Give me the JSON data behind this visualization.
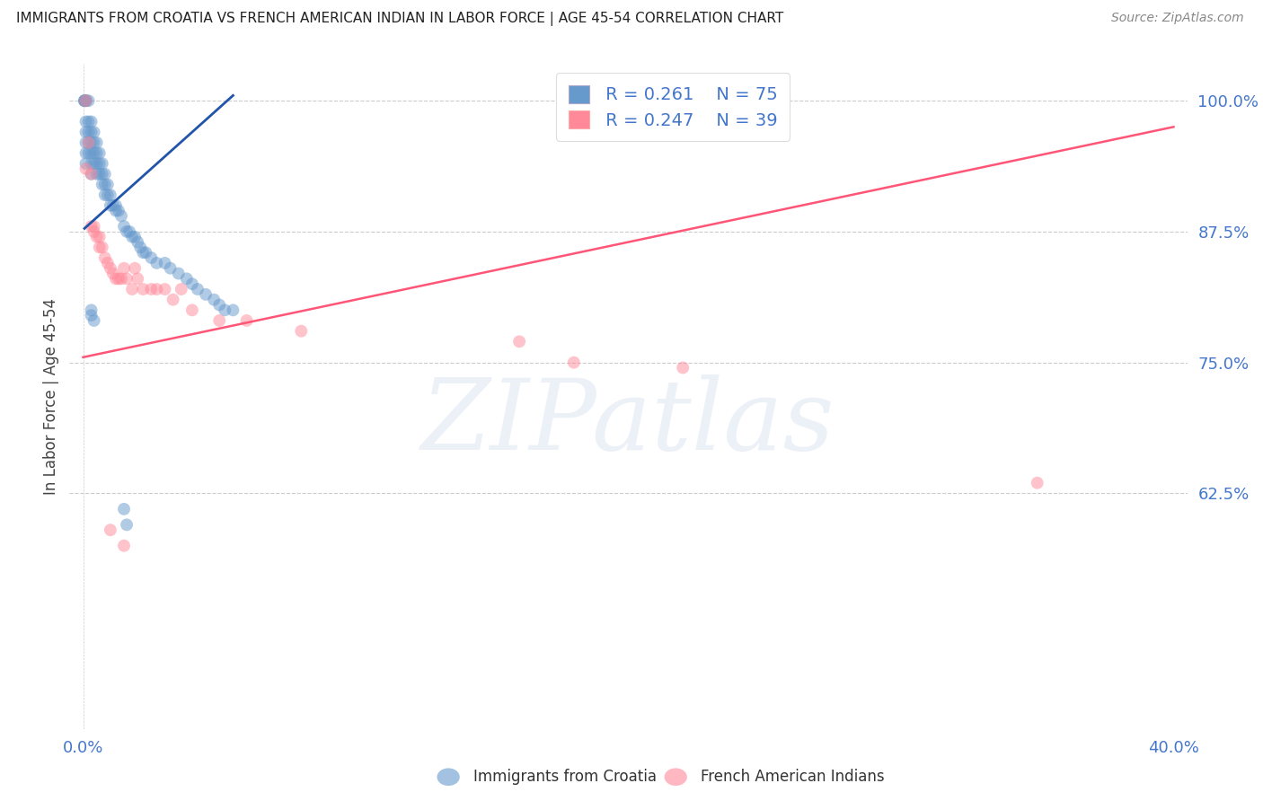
{
  "title": "IMMIGRANTS FROM CROATIA VS FRENCH AMERICAN INDIAN IN LABOR FORCE | AGE 45-54 CORRELATION CHART",
  "source": "Source: ZipAtlas.com",
  "ylabel": "In Labor Force | Age 45-54",
  "watermark": "ZIPatlas",
  "legend_blue_r": "0.261",
  "legend_blue_n": "75",
  "legend_pink_r": "0.247",
  "legend_pink_n": "39",
  "legend_label_blue": "Immigrants from Croatia",
  "legend_label_pink": "French American Indians",
  "blue_color": "#6699CC",
  "pink_color": "#FF8899",
  "trendline_blue_color": "#2255AA",
  "trendline_pink_color": "#FF5577",
  "blue_x": [
    0.0005,
    0.0005,
    0.0005,
    0.001,
    0.001,
    0.001,
    0.001,
    0.001,
    0.001,
    0.001,
    0.001,
    0.002,
    0.002,
    0.002,
    0.002,
    0.002,
    0.003,
    0.003,
    0.003,
    0.003,
    0.003,
    0.003,
    0.004,
    0.004,
    0.004,
    0.004,
    0.005,
    0.005,
    0.005,
    0.005,
    0.006,
    0.006,
    0.006,
    0.007,
    0.007,
    0.007,
    0.008,
    0.008,
    0.008,
    0.009,
    0.009,
    0.01,
    0.01,
    0.011,
    0.012,
    0.012,
    0.013,
    0.014,
    0.015,
    0.016,
    0.017,
    0.018,
    0.019,
    0.02,
    0.021,
    0.022,
    0.023,
    0.025,
    0.027,
    0.03,
    0.032,
    0.035,
    0.038,
    0.04,
    0.042,
    0.045,
    0.048,
    0.05,
    0.052,
    0.055,
    0.003,
    0.003,
    0.004,
    0.015,
    0.016
  ],
  "blue_y": [
    1.0,
    1.0,
    1.0,
    1.0,
    1.0,
    1.0,
    0.98,
    0.97,
    0.96,
    0.95,
    0.94,
    1.0,
    0.98,
    0.97,
    0.96,
    0.95,
    0.98,
    0.97,
    0.96,
    0.95,
    0.94,
    0.93,
    0.97,
    0.96,
    0.95,
    0.94,
    0.96,
    0.95,
    0.94,
    0.93,
    0.95,
    0.94,
    0.93,
    0.94,
    0.93,
    0.92,
    0.93,
    0.92,
    0.91,
    0.92,
    0.91,
    0.91,
    0.9,
    0.9,
    0.9,
    0.895,
    0.895,
    0.89,
    0.88,
    0.875,
    0.875,
    0.87,
    0.87,
    0.865,
    0.86,
    0.855,
    0.855,
    0.85,
    0.845,
    0.845,
    0.84,
    0.835,
    0.83,
    0.825,
    0.82,
    0.815,
    0.81,
    0.805,
    0.8,
    0.8,
    0.8,
    0.795,
    0.79,
    0.61,
    0.595
  ],
  "pink_x": [
    0.001,
    0.001,
    0.002,
    0.003,
    0.003,
    0.004,
    0.004,
    0.005,
    0.006,
    0.006,
    0.007,
    0.008,
    0.009,
    0.01,
    0.011,
    0.012,
    0.013,
    0.014,
    0.015,
    0.016,
    0.018,
    0.019,
    0.02,
    0.022,
    0.025,
    0.027,
    0.03,
    0.033,
    0.036,
    0.04,
    0.05,
    0.06,
    0.08,
    0.16,
    0.18,
    0.22,
    0.35,
    0.01,
    0.015
  ],
  "pink_y": [
    1.0,
    0.935,
    0.96,
    0.93,
    0.88,
    0.88,
    0.875,
    0.87,
    0.87,
    0.86,
    0.86,
    0.85,
    0.845,
    0.84,
    0.835,
    0.83,
    0.83,
    0.83,
    0.84,
    0.83,
    0.82,
    0.84,
    0.83,
    0.82,
    0.82,
    0.82,
    0.82,
    0.81,
    0.82,
    0.8,
    0.79,
    0.79,
    0.78,
    0.77,
    0.75,
    0.745,
    0.635,
    0.59,
    0.575
  ],
  "blue_trend_x": [
    0.0005,
    0.055
  ],
  "blue_trend_y": [
    0.878,
    1.005
  ],
  "pink_trend_x": [
    0.0,
    0.4
  ],
  "pink_trend_y": [
    0.755,
    0.975
  ],
  "y_ticks": [
    1.0,
    0.875,
    0.75,
    0.625
  ],
  "y_tick_labels": [
    "100.0%",
    "87.5%",
    "75.0%",
    "62.5%"
  ],
  "x_ticks": [
    0.0,
    0.1,
    0.2,
    0.3,
    0.4
  ],
  "x_tick_labels": [
    "0.0%",
    "",
    "",
    "",
    "40.0%"
  ],
  "xlim": [
    -0.005,
    0.405
  ],
  "ylim": [
    0.4,
    1.035
  ],
  "background_color": "#FFFFFF",
  "grid_color": "#CCCCCC",
  "tick_color": "#4477CC"
}
